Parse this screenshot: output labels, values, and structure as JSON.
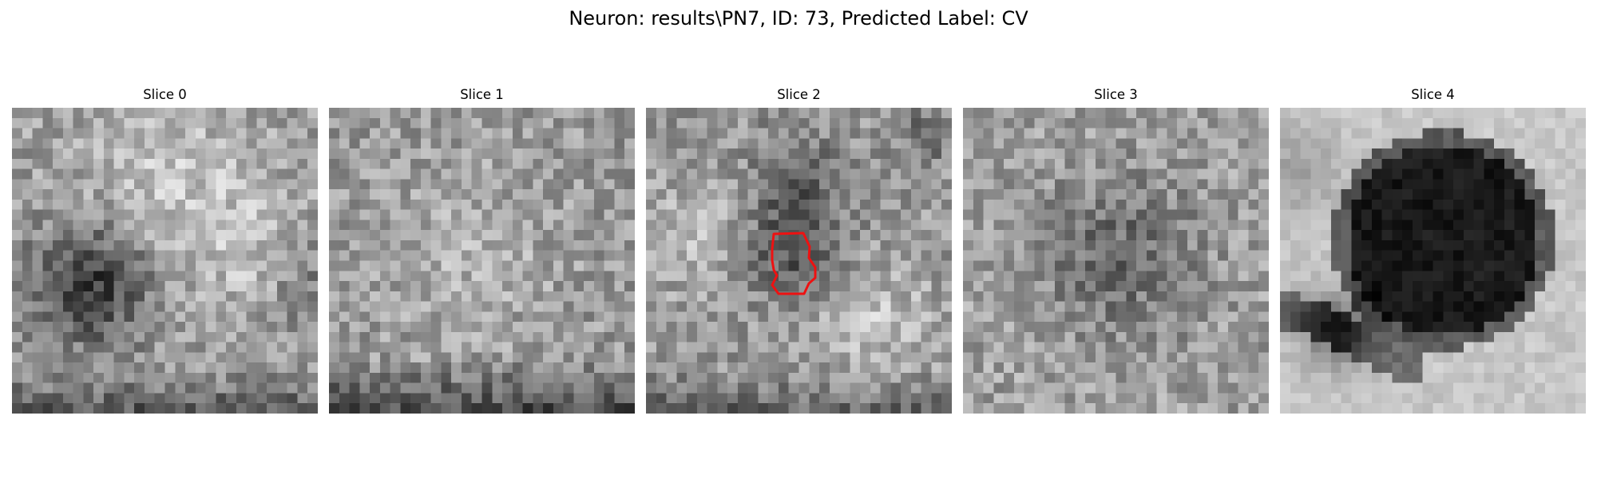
{
  "figure": {
    "title": "Neuron: results\\PN7, ID: 73, Predicted Label: CV"
  },
  "panels": [
    {
      "title": "Slice 0",
      "pattern": "dark-blob-left",
      "seed": 11,
      "contour": false
    },
    {
      "title": "Slice 1",
      "pattern": "noise-dark-bottom",
      "seed": 23,
      "contour": false
    },
    {
      "title": "Slice 2",
      "pattern": "mid-dark-center",
      "seed": 37,
      "contour": true
    },
    {
      "title": "Slice 3",
      "pattern": "faint-center",
      "seed": 53,
      "contour": false
    },
    {
      "title": "Slice 4",
      "pattern": "large-dark-vesicle",
      "seed": 71,
      "contour": false
    }
  ],
  "colors": {
    "contour": "#ee1111",
    "background": "#ffffff",
    "text": "#000000"
  }
}
